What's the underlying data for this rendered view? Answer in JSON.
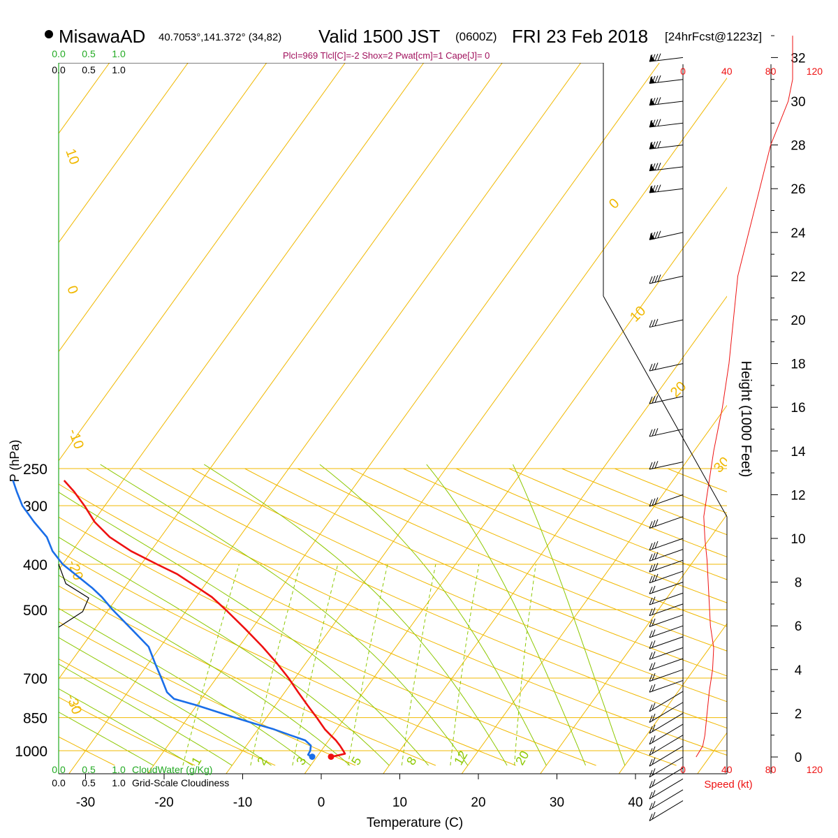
{
  "header": {
    "station": "MisawaAD",
    "coords": "40.7053°,141.372° (34,82)",
    "valid_prefix": "Valid 1500 JST",
    "valid_utc": "(0600Z)",
    "valid_date": "FRI 23 Feb 2018",
    "forecast": "[24hrFcst@1223z]",
    "indices": "Plcl=969 Tlcl[C]=-2 Shox=2 Pwat[cm]=1 Cape[J]= 0"
  },
  "colors": {
    "temperature": "#ee1111",
    "dewpoint": "#1a6ee8",
    "isotherm": "#f0b800",
    "dry_adiabat": "#f0b800",
    "moist_adiabat": "#8cc800",
    "mixing_ratio": "#8cc800",
    "cloud_label": "#22aa22",
    "indices_text": "#a0105c",
    "speed": "#ee1111",
    "axis": "#000000"
  },
  "chart_data": [
    {
      "type": "line",
      "name": "skew-T log-P sounding",
      "xlabel": "Temperature (C)",
      "ylabel": "P (hPa)",
      "x_ticks": [
        -30,
        -20,
        -10,
        0,
        10,
        20,
        30,
        40
      ],
      "pressure_ticks": [
        250,
        300,
        400,
        500,
        700,
        850,
        1000
      ],
      "ylim_hpa": [
        1070,
        250
      ],
      "skew": "isotherms slanted to the right",
      "grid": true,
      "series": [
        {
          "key": "temperature",
          "color": "red",
          "points_p_t": [
            [
              1030,
              1.8
            ],
            [
              1025,
              2.4
            ],
            [
              1015,
              3.3
            ],
            [
              1000,
              2.8
            ],
            [
              975,
              1.9
            ],
            [
              950,
              0.9
            ],
            [
              925,
              -0.3
            ],
            [
              900,
              -1.5
            ],
            [
              850,
              -3.6
            ],
            [
              800,
              -5.9
            ],
            [
              750,
              -8.3
            ],
            [
              700,
              -10.8
            ],
            [
              650,
              -13.7
            ],
            [
              600,
              -17.0
            ],
            [
              550,
              -20.8
            ],
            [
              500,
              -25.1
            ],
            [
              470,
              -28.0
            ],
            [
              450,
              -30.5
            ],
            [
              420,
              -34.5
            ],
            [
              400,
              -38.0
            ],
            [
              375,
              -42.5
            ],
            [
              350,
              -46.5
            ],
            [
              325,
              -49.8
            ],
            [
              300,
              -52.6
            ],
            [
              280,
              -55.2
            ],
            [
              265,
              -57.5
            ]
          ]
        },
        {
          "key": "dewpoint",
          "color": "blue",
          "points_p_t": [
            [
              1030,
              -0.6
            ],
            [
              1020,
              -1.3
            ],
            [
              1000,
              -1.4
            ],
            [
              975,
              -1.8
            ],
            [
              950,
              -3.0
            ],
            [
              925,
              -5.5
            ],
            [
              900,
              -8.0
            ],
            [
              875,
              -11.0
            ],
            [
              850,
              -14.0
            ],
            [
              800,
              -20.0
            ],
            [
              775,
              -23.5
            ],
            [
              750,
              -25.0
            ],
            [
              700,
              -27.0
            ],
            [
              650,
              -29.2
            ],
            [
              600,
              -31.5
            ],
            [
              550,
              -35.3
            ],
            [
              500,
              -39.5
            ],
            [
              470,
              -42.0
            ],
            [
              450,
              -44.0
            ],
            [
              420,
              -47.5
            ],
            [
              400,
              -50.0
            ],
            [
              375,
              -52.5
            ],
            [
              350,
              -54.5
            ],
            [
              325,
              -57.5
            ],
            [
              300,
              -60.5
            ],
            [
              280,
              -62.5
            ],
            [
              265,
              -64.0
            ]
          ]
        }
      ],
      "isotherm_labels": [
        "10",
        "0",
        "-10",
        "-20",
        "-30",
        "0",
        "10",
        "20",
        "30"
      ],
      "mixing_ratio_labels": [
        "1",
        "2",
        "3",
        "5",
        "8",
        "12",
        "20"
      ],
      "winds": {
        "levels_kft": [
          32,
          31,
          30,
          29,
          28,
          27,
          26,
          24,
          22,
          20,
          18,
          16.5,
          15,
          13.5,
          12,
          11,
          10,
          9.5,
          9,
          8.5,
          8,
          7.5,
          7,
          6.5,
          6,
          5.5,
          5,
          4.5,
          4,
          3.5,
          3,
          2.5,
          2,
          1.5,
          1,
          0.5,
          0,
          -0.5,
          -1,
          -1.5,
          -2
        ],
        "barb_flag": "feathered wind barbs, mostly westerly"
      },
      "height_axis": {
        "label": "Height (1000 Feet)",
        "ticks": [
          0,
          2,
          4,
          6,
          8,
          10,
          12,
          14,
          16,
          18,
          20,
          22,
          24,
          26,
          28,
          30,
          32
        ]
      },
      "speed_axis": {
        "label": "Speed (kt)",
        "ticks": [
          0,
          40,
          80,
          120
        ],
        "profile_kt_by_kft": [
          [
            0,
            12
          ],
          [
            0.5,
            18
          ],
          [
            1,
            20
          ],
          [
            2,
            22
          ],
          [
            3,
            24
          ],
          [
            4,
            27
          ],
          [
            5,
            28
          ],
          [
            6,
            25
          ],
          [
            7,
            24
          ],
          [
            8,
            23
          ],
          [
            9,
            22
          ],
          [
            10,
            20
          ],
          [
            11,
            19
          ],
          [
            12,
            22
          ],
          [
            13,
            25
          ],
          [
            14,
            28
          ],
          [
            15,
            32
          ],
          [
            16,
            36
          ],
          [
            18,
            42
          ],
          [
            20,
            46
          ],
          [
            22,
            50
          ],
          [
            24,
            60
          ],
          [
            26,
            70
          ],
          [
            28,
            80
          ],
          [
            29,
            88
          ],
          [
            30,
            96
          ],
          [
            31,
            100
          ],
          [
            32,
            100
          ],
          [
            33,
            100
          ]
        ]
      },
      "cloud": {
        "water_ticks": [
          "0.0",
          "0.5",
          "1.0"
        ],
        "water_label": "CloudWater (g/Kg)",
        "cover_ticks": [
          "0.0",
          "0.5",
          "1.0"
        ],
        "cover_label": "Grid-Scale Cloudiness",
        "water_profile": [
          [
            400,
            0.0
          ],
          [
            440,
            0.12
          ],
          [
            472,
            0.5
          ],
          [
            505,
            0.4
          ],
          [
            545,
            0.0
          ]
        ]
      }
    }
  ]
}
